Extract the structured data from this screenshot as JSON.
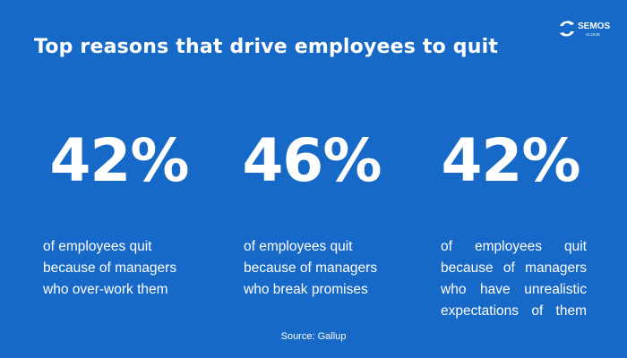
{
  "logo": {
    "name": "SEMOS",
    "sub": "CLOUD"
  },
  "title": "Top reasons that drive employees to quit",
  "stats": [
    {
      "value": "42%",
      "lines": [
        "of employees quit",
        "because of managers",
        "who over-work them"
      ]
    },
    {
      "value": "46%",
      "lines": [
        "of employees quit",
        "because of managers",
        "who break promises"
      ]
    },
    {
      "value": "42%",
      "lines": [
        "of employees quit",
        "because of managers",
        "who have unrealistic",
        "expectations of them"
      ]
    }
  ],
  "source": "Source: Gallup"
}
